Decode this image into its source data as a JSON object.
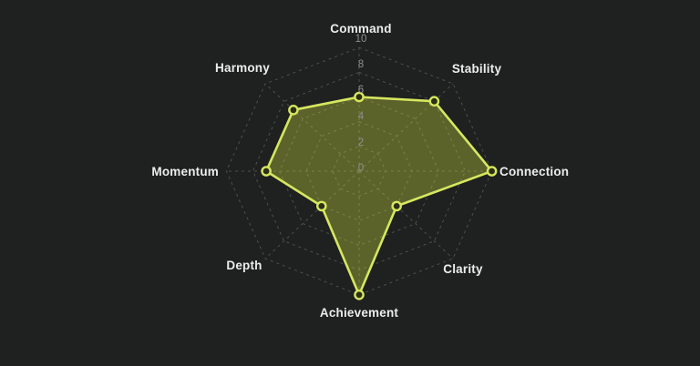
{
  "chart_data": {
    "type": "radar",
    "categories": [
      "Command",
      "Stability",
      "Connection",
      "Clarity",
      "Achievement",
      "Depth",
      "Momentum",
      "Harmony"
    ],
    "values": [
      6,
      8,
      10,
      4,
      10,
      4,
      7,
      7
    ],
    "ticks": [
      0,
      2,
      4,
      6,
      8,
      10
    ],
    "rlim": [
      0,
      10
    ],
    "start_axis": "top",
    "direction": "clockwise",
    "grid": "dashed",
    "legend": false,
    "colors": {
      "background": "#1f2020",
      "stroke": "#d6e75f",
      "fill_rgba": "rgba(190,210,60,0.38)",
      "marker_hole": "#2c2f16",
      "grid_line": "#4d4f4f",
      "axis_label": "#ececec",
      "tick_label": "#8f9090"
    }
  }
}
